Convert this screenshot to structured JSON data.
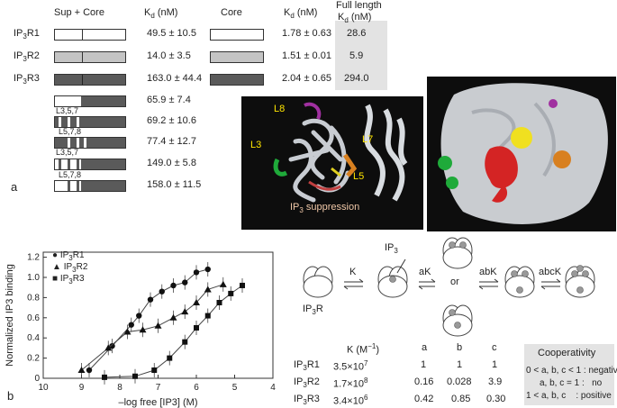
{
  "panel_a": {
    "label": "a",
    "header_sup_core": "Sup + Core",
    "header_kd": "K",
    "header_kd_sub": "d",
    "header_kd_unit": " (nM)",
    "header_core": "Core",
    "header_kd2": "K",
    "header_kd2_sub": "d",
    "header_kd2_unit": " (nM)",
    "header_full_length": "Full length",
    "header_kd3": "K",
    "header_kd3_sub": "d",
    "header_kd3_unit": " (nM)",
    "rows": [
      {
        "name": "IP",
        "sub": "3",
        "suffix": "R1",
        "kd": "49.5 ± 10.5",
        "core_kd": "1.78 ± 0.63",
        "full_kd": "28.6",
        "color": "#ffffff"
      },
      {
        "name": "IP",
        "sub": "3",
        "suffix": "R2",
        "kd": "14.0 ± 3.5",
        "core_kd": "1.51 ± 0.01",
        "full_kd": "5.9",
        "color": "#c4c4c4"
      },
      {
        "name": "IP",
        "sub": "3",
        "suffix": "R3",
        "kd": "163.0 ± 44.4",
        "core_kd": "2.04 ± 0.65",
        "full_kd": "294.0",
        "color": "#5a5a5a"
      }
    ],
    "chimeras": [
      {
        "label": "",
        "kd": "65.9 ± 7.4"
      },
      {
        "label": "L3,5,7",
        "kd": "69.2 ± 10.6"
      },
      {
        "label": "L5,7,8",
        "kd": "77.4 ± 12.7"
      },
      {
        "label": "L3,5,7",
        "kd": "149.0 ± 5.8"
      },
      {
        "label": "L5,7,8",
        "kd": "158.0 ± 11.5"
      }
    ],
    "structure_labels": {
      "l8": "L8",
      "l3": "L3",
      "l7": "L7",
      "l5": "L5",
      "suppression_pre": "IP",
      "suppression_sub": "3",
      "suppression_post": " suppression"
    }
  },
  "panel_b": {
    "label": "b",
    "chart_data": {
      "type": "scatter",
      "xlabel": "–log free [IP3] (M)",
      "ylabel": "Normalized IP3 binding",
      "xlim": [
        10,
        4
      ],
      "ylim": [
        0,
        1.25
      ],
      "x_ticks": [
        "10",
        "9",
        "8",
        "7",
        "6",
        "5",
        "4"
      ],
      "y_ticks": [
        "0",
        "0.2",
        "0.4",
        "0.6",
        "0.8",
        "1.0",
        "1.2"
      ],
      "series": [
        {
          "name": "IP3R1",
          "marker": "circle",
          "x": [
            8.8,
            8.2,
            7.7,
            7.5,
            7.2,
            6.9,
            6.6,
            6.3,
            6.0,
            5.7
          ],
          "y": [
            0.08,
            0.32,
            0.53,
            0.62,
            0.78,
            0.86,
            0.92,
            0.95,
            1.05,
            1.08
          ]
        },
        {
          "name": "IP3R2",
          "marker": "triangle",
          "x": [
            9.0,
            8.3,
            7.8,
            7.4,
            7.0,
            6.6,
            6.3,
            6.0,
            5.7,
            5.3
          ],
          "y": [
            0.08,
            0.3,
            0.46,
            0.48,
            0.52,
            0.6,
            0.66,
            0.75,
            0.88,
            0.93
          ]
        },
        {
          "name": "IP3R3",
          "marker": "square",
          "x": [
            8.4,
            7.6,
            7.1,
            6.7,
            6.3,
            6.0,
            5.7,
            5.4,
            5.1,
            4.8
          ],
          "y": [
            0.01,
            0.02,
            0.08,
            0.2,
            0.36,
            0.5,
            0.62,
            0.75,
            0.84,
            0.92
          ]
        }
      ]
    },
    "legend": [
      {
        "name": "IP",
        "sub": "3",
        "suffix": "R1",
        "marker": "●"
      },
      {
        "name": "IP",
        "sub": "3",
        "suffix": "R2",
        "marker": "▲"
      },
      {
        "name": "IP",
        "sub": "3",
        "suffix": "R3",
        "marker": "■"
      }
    ],
    "scheme": {
      "ip3": "IP",
      "ip3_sub": "3",
      "receptor": "IP",
      "receptor_sub": "3",
      "receptor_suffix": "R",
      "k1": "K",
      "k2": "aK",
      "k3": "abK",
      "k4": "abcK",
      "or": "or"
    },
    "table": {
      "headers": [
        "K (M",
        "−1",
        ")",
        "a",
        "b",
        "c"
      ],
      "rows": [
        {
          "name": "IP",
          "sub": "3",
          "suffix": "R1",
          "K": "3.5",
          "K_exp": "7",
          "a": "1",
          "b": "1",
          "c": "1"
        },
        {
          "name": "IP",
          "sub": "3",
          "suffix": "R2",
          "K": "1.7",
          "K_exp": "8",
          "a": "0.16",
          "b": "0.028",
          "c": "3.9"
        },
        {
          "name": "IP",
          "sub": "3",
          "suffix": "R3",
          "K": "3.4",
          "K_exp": "6",
          "a": "0.42",
          "b": "0.85",
          "c": "0.30"
        }
      ],
      "times": "×10"
    },
    "cooperativity": {
      "title": "Cooperativity",
      "lines": [
        {
          "cond": "0 < a, b, c < 1 :",
          "result": "negative"
        },
        {
          "cond": "a, b, c = 1 :",
          "result": "no"
        },
        {
          "cond": "1 < a, b, c",
          "result": ": positive"
        }
      ]
    }
  }
}
